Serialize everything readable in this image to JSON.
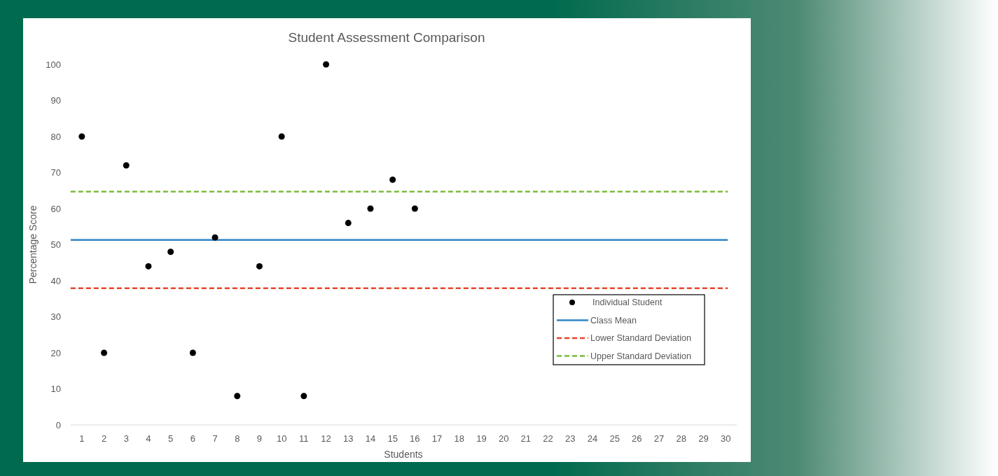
{
  "chart_data": {
    "type": "scatter",
    "title": "Student Assessment Comparison",
    "xlabel": "Students",
    "ylabel": "Percentage Score",
    "x": [
      1,
      2,
      3,
      4,
      5,
      6,
      7,
      8,
      9,
      10,
      11,
      12,
      13,
      14,
      15,
      16
    ],
    "series": [
      {
        "name": "Individual Student",
        "color": "#000000",
        "values": [
          80,
          20,
          72,
          44,
          48,
          20,
          52,
          8,
          44,
          80,
          8,
          100,
          56,
          60,
          68,
          60
        ]
      }
    ],
    "ref_lines": [
      {
        "axis": "y",
        "value": 51.3,
        "label": "Class Mean",
        "color": "#2e86c9",
        "line_style": "solid"
      },
      {
        "axis": "y",
        "value": 37.9,
        "label": "Lower Standard Deviation",
        "color": "#e8452a",
        "line_style": "dashed"
      },
      {
        "axis": "y",
        "value": 64.7,
        "label": "Upper Standard Deviation",
        "color": "#7dbb3c",
        "line_style": "dashed"
      }
    ],
    "xlim": [
      0.5,
      30.5
    ],
    "xticks": [
      1,
      2,
      3,
      4,
      5,
      6,
      7,
      8,
      9,
      10,
      11,
      12,
      13,
      14,
      15,
      16,
      17,
      18,
      19,
      20,
      21,
      22,
      23,
      24,
      25,
      26,
      27,
      28,
      29,
      30
    ],
    "ylim": [
      0,
      100
    ],
    "yticks": [
      0,
      10,
      20,
      30,
      40,
      50,
      60,
      70,
      80,
      90,
      100
    ],
    "grid": false,
    "legend": "right",
    "marker": "circle"
  }
}
